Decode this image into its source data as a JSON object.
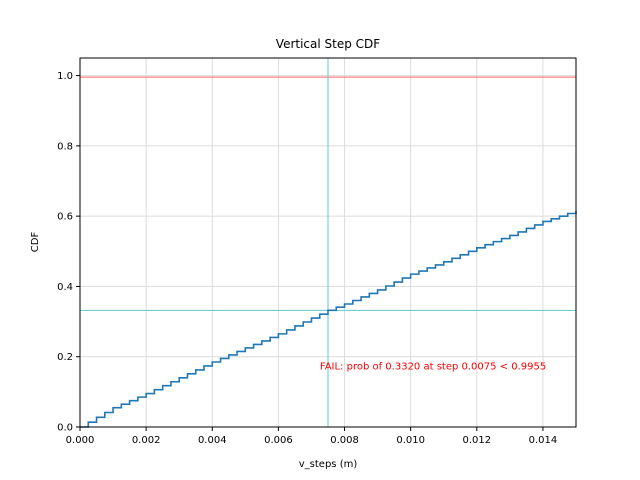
{
  "chart_data": {
    "type": "line",
    "title": "Vertical Step CDF",
    "xlabel": "v_steps (m)",
    "ylabel": "CDF",
    "xlim": [
      0,
      0.015
    ],
    "ylim": [
      0,
      1.05
    ],
    "xticks": [
      "0.000",
      "0.002",
      "0.004",
      "0.006",
      "0.008",
      "0.010",
      "0.012",
      "0.014"
    ],
    "yticks": [
      "0.0",
      "0.2",
      "0.4",
      "0.6",
      "0.8",
      "1.0"
    ],
    "xtick_values": [
      0,
      0.002,
      0.004,
      0.006,
      0.008,
      0.01,
      0.012,
      0.014
    ],
    "ytick_values": [
      0,
      0.2,
      0.4,
      0.6,
      0.8,
      1.0
    ],
    "grid": true,
    "series": [
      {
        "color": "#1f77b4",
        "step": 0.00025,
        "x": [
          0,
          0.001,
          0.002,
          0.003,
          0.004,
          0.005,
          0.006,
          0.007,
          0.0075,
          0.008,
          0.009,
          0.01,
          0.011,
          0.012,
          0.013,
          0.014,
          0.015
        ],
        "y": [
          0.0,
          0.055,
          0.095,
          0.14,
          0.185,
          0.225,
          0.265,
          0.31,
          0.332,
          0.35,
          0.39,
          0.435,
          0.47,
          0.51,
          0.545,
          0.585,
          0.615
        ]
      }
    ],
    "reference_lines": [
      {
        "orientation": "horizontal",
        "value": 0.9955,
        "color": "#ff6666"
      },
      {
        "orientation": "horizontal",
        "value": 0.332,
        "color": "#5cc8c8"
      },
      {
        "orientation": "vertical",
        "value": 0.0075,
        "color": "#5cc8c8"
      }
    ],
    "annotation": {
      "text": "FAIL: prob of 0.3320 at step 0.0075 < 0.9955",
      "x": 0.0141,
      "y": 0.163,
      "color": "#ff0000"
    }
  }
}
